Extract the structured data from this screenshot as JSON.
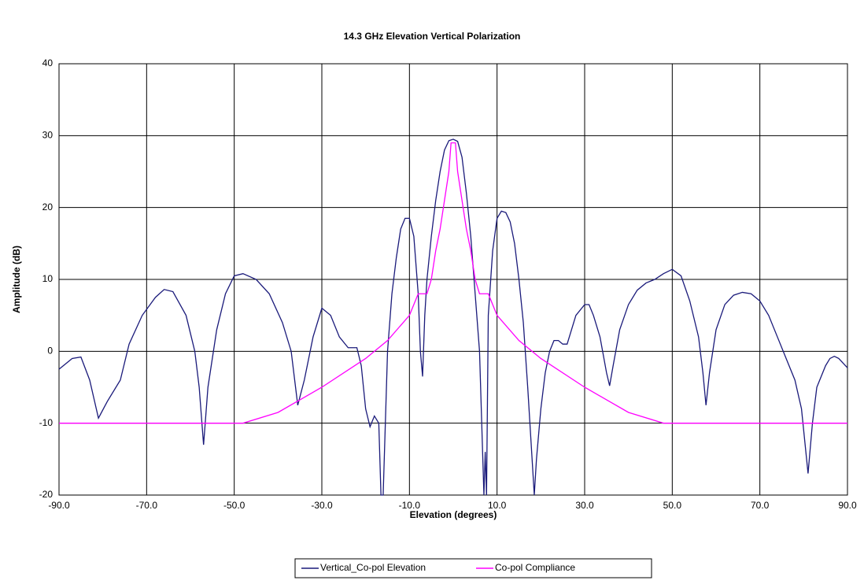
{
  "chart_data": {
    "type": "line",
    "title": "14.3 GHz Elevation Vertical Polarization",
    "xlabel": "Elevation (degrees)",
    "ylabel": "Amplitude (dB)",
    "xlim": [
      -90,
      90
    ],
    "ylim": [
      -20,
      40
    ],
    "xticks": [
      {
        "value": -90,
        "label": "-90.0"
      },
      {
        "value": -70,
        "label": "-70.0"
      },
      {
        "value": -50,
        "label": "-50.0"
      },
      {
        "value": -30,
        "label": "-30.0"
      },
      {
        "value": -10,
        "label": "-10.0"
      },
      {
        "value": 10,
        "label": "10.0"
      },
      {
        "value": 30,
        "label": "30.0"
      },
      {
        "value": 50,
        "label": "50.0"
      },
      {
        "value": 70,
        "label": "70.0"
      },
      {
        "value": 90,
        "label": "90.0"
      }
    ],
    "yticks": [
      -20,
      -10,
      0,
      10,
      20,
      30,
      40
    ],
    "grid": true,
    "legend": "bottom",
    "series": [
      {
        "name": "Vertical_Co-pol Elevation",
        "color": "#1a1a7a",
        "x": [
          -90,
          -87,
          -85,
          -83,
          -81,
          -79,
          -76,
          -74,
          -71,
          -68,
          -66,
          -64,
          -61,
          -59,
          -58,
          -57,
          -56,
          -54,
          -52,
          -50,
          -48,
          -45,
          -42,
          -39,
          -37,
          -36,
          -35.5,
          -34,
          -32,
          -30,
          -28,
          -26,
          -24,
          -22,
          -21,
          -20,
          -19,
          -18,
          -17,
          -16.5,
          -16,
          -15,
          -14,
          -13,
          -12,
          -11,
          -10,
          -9,
          -8,
          -7.5,
          -7,
          -6.5,
          -6,
          -5,
          -4,
          -3,
          -2,
          -1,
          0,
          1,
          2,
          3,
          4,
          5,
          6,
          6.5,
          7,
          7.3,
          7.6,
          8,
          9,
          10,
          11,
          12,
          13,
          14,
          15,
          16,
          17,
          18,
          18.5,
          19,
          20,
          21,
          22,
          23,
          24,
          25,
          26,
          27,
          28,
          30,
          31,
          32,
          33.5,
          35,
          35.7,
          36.5,
          38,
          40,
          42,
          44,
          46,
          48,
          50,
          52,
          54,
          56,
          57,
          57.7,
          58.5,
          60,
          62,
          64,
          66,
          68,
          70,
          72,
          74,
          76,
          78,
          79.5,
          81,
          82,
          83,
          85,
          86,
          87,
          88,
          90
        ],
        "values": [
          -2.5,
          -1,
          -0.8,
          -4,
          -9.3,
          -7,
          -4,
          1,
          5,
          7.5,
          8.6,
          8.3,
          5,
          0,
          -5,
          -13,
          -5,
          3,
          8,
          10.5,
          10.8,
          10,
          8,
          4,
          0,
          -5,
          -7.5,
          -4,
          2,
          6,
          5,
          2,
          0.5,
          0.5,
          -2,
          -8,
          -10.5,
          -9,
          -10,
          -20,
          -20,
          0,
          8,
          13,
          17,
          18.5,
          18.5,
          16,
          8,
          0,
          -3.5,
          5,
          10,
          16,
          21,
          25,
          28,
          29.3,
          29.5,
          29.2,
          27,
          22,
          16,
          8,
          0,
          -10,
          -20,
          -14,
          -20,
          5,
          14,
          18.5,
          19.5,
          19.3,
          18,
          15,
          10,
          4,
          -5,
          -15,
          -20,
          -15,
          -8,
          -3,
          0,
          1.5,
          1.5,
          1,
          1,
          3,
          5,
          6.5,
          6.5,
          5,
          2,
          -3,
          -4.8,
          -2,
          3,
          6.5,
          8.5,
          9.5,
          10,
          10.8,
          11.4,
          10.5,
          7,
          2,
          -3,
          -7.5,
          -3,
          3,
          6.5,
          7.8,
          8.2,
          8,
          7,
          5,
          2,
          -1,
          -4,
          -8,
          -17,
          -10,
          -5,
          -2,
          -1,
          -0.7,
          -1,
          -2.3
        ]
      },
      {
        "name": "Co-pol Compliance",
        "color": "#ff00ff",
        "x": [
          -90,
          -48,
          -40,
          -30,
          -20,
          -15,
          -10,
          -8,
          -6,
          -5,
          -4,
          -3,
          -2,
          -1,
          -0.5,
          0.5,
          1,
          2,
          3,
          4,
          5,
          6,
          8,
          10,
          15,
          20,
          30,
          40,
          48,
          90
        ],
        "values": [
          -10,
          -10,
          -8.5,
          -5,
          -1,
          1.5,
          5,
          8,
          8,
          10,
          14,
          17,
          21,
          25,
          29,
          29,
          25,
          21,
          17,
          14,
          10,
          8,
          8,
          5,
          1.5,
          -1,
          -5,
          -8.5,
          -10,
          -10
        ]
      }
    ]
  }
}
